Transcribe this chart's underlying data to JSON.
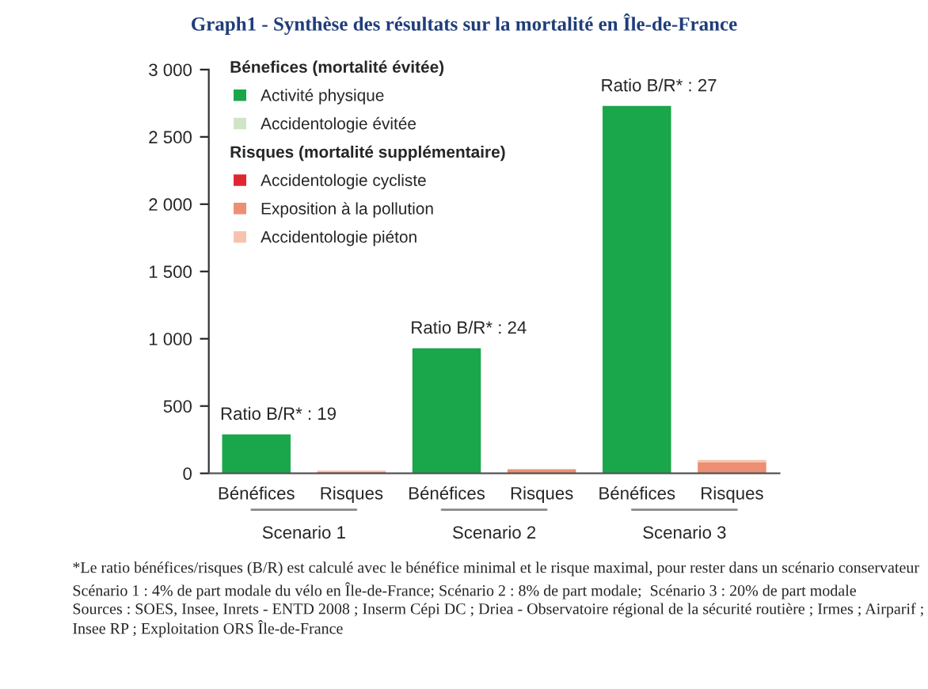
{
  "chart_data": {
    "type": "bar",
    "stacked": true,
    "title": "Graph1 - Synthèse des résultats sur la mortalité en Île-de-France",
    "categories": [
      "Bénéfices",
      "Risques",
      "Bénéfices",
      "Risques",
      "Bénéfices",
      "Risques"
    ],
    "series": [
      {
        "name": "Activité physique",
        "color": "#1aa64a",
        "values": [
          290,
          null,
          930,
          null,
          2730,
          null
        ]
      },
      {
        "name": "Accidentologie évitée",
        "color": "#cfe5c8",
        "values": [
          null,
          null,
          null,
          null,
          null,
          null
        ]
      },
      {
        "name": "Accidentologie cycliste",
        "color": "#e0262f",
        "values": [
          null,
          null,
          null,
          null,
          null,
          null
        ]
      },
      {
        "name": "Exposition à la pollution",
        "color": "#ec8f75",
        "values": [
          null,
          10,
          null,
          30,
          null,
          80
        ]
      },
      {
        "name": "Accidentologie piéton",
        "color": "#f6c4ad",
        "values": [
          null,
          10,
          null,
          null,
          null,
          20
        ]
      }
    ],
    "ylim": [
      0,
      3000
    ],
    "yticks": [
      0,
      {
        "value": 500,
        "label": "500"
      },
      {
        "value": 1000,
        "label": "1 000"
      },
      {
        "value": 1500,
        "label": "1 500"
      },
      {
        "value": 2000,
        "label": "2 000"
      },
      {
        "value": 2500,
        "label": "2 500"
      },
      {
        "value": 3000,
        "label": "3 000"
      }
    ],
    "grid": false,
    "legend": "top left",
    "annotations": [
      "Bénefices (mortalité évitée)",
      "Risques (mortalité supplémentaire)",
      "Scenario 1",
      "Scenario 2",
      "Scenario 3",
      "Ratio B/R* : 19",
      "Ratio B/R* : 24",
      "Ratio B/R* : 27",
      "*Le ratio bénéfices/risques (B/R) est calculé avec le bénéfice minimal et le risque maximal, pour rester dans un scénario conservateur",
      "Scénario 1 : 4% de part modale du vélo en Île-de-France; Scénario 2 : 8% de part modale;  Scénario 3 : 20% de part modale",
      "Sources : SOES, Insee, Inrets - ENTD 2008 ; Inserm Cépi DC ; Driea - Observatoire régional de la sécurité routière ; Irmes ; Airparif ; Insee RP ; Exploitation ORS Île-de-France"
    ]
  }
}
